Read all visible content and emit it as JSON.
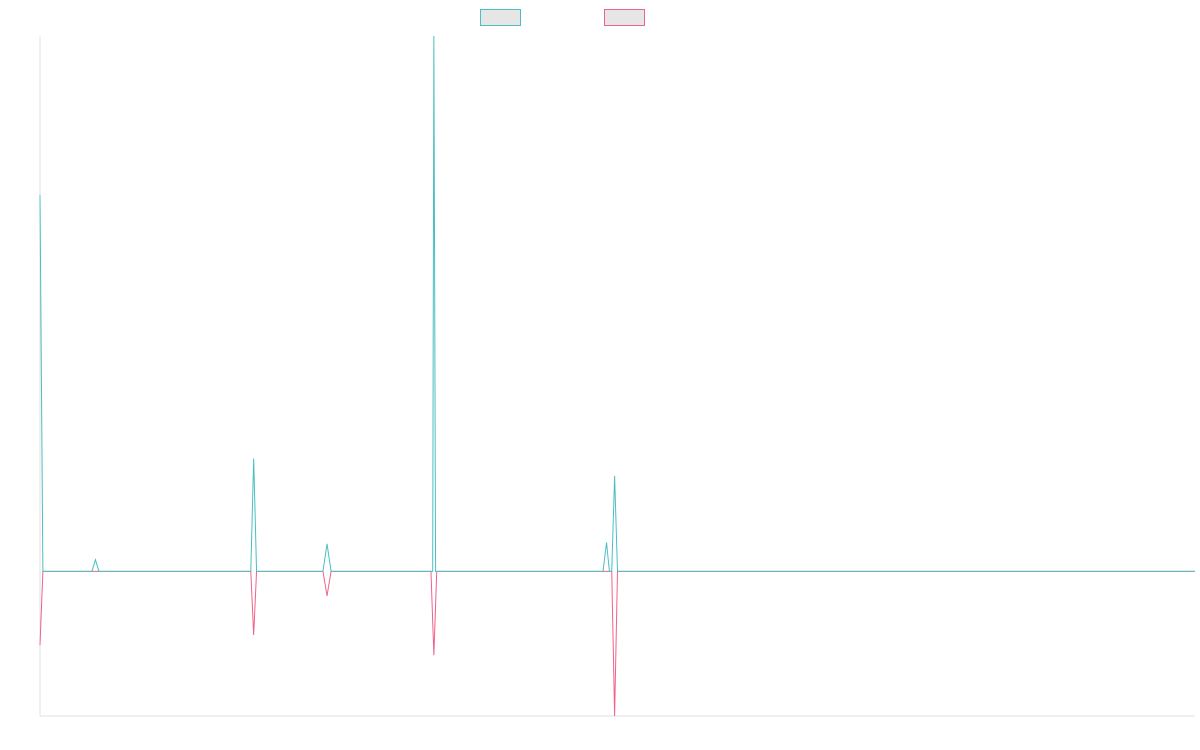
{
  "colors": {
    "positive_series": "#4bbfc0",
    "negative_series": "#f0628a",
    "legend_fill": "#e6e6e6",
    "axis": "#e0e0e0"
  },
  "chart_data": {
    "type": "line",
    "title": "",
    "xlabel": "",
    "ylabel": "",
    "legend": {
      "position": "top-center",
      "entries": [
        "",
        ""
      ]
    },
    "grid": false,
    "xlim": [
      0,
      200
    ],
    "ylim": [
      -100,
      370
    ],
    "series": [
      {
        "color": "#4bbfc0",
        "points": [
          [
            0,
            260
          ],
          [
            0.5,
            0
          ],
          [
            9,
            0
          ],
          [
            9.6,
            8
          ],
          [
            10.2,
            0
          ],
          [
            36.5,
            0
          ],
          [
            37,
            78
          ],
          [
            37.5,
            0
          ],
          [
            49,
            0
          ],
          [
            49.7,
            19
          ],
          [
            50.4,
            0
          ],
          [
            68,
            0
          ],
          [
            68.2,
            370
          ],
          [
            68.5,
            0
          ],
          [
            97.5,
            0
          ],
          [
            98.1,
            20
          ],
          [
            98.6,
            0
          ],
          [
            99,
            0
          ],
          [
            99.5,
            66
          ],
          [
            100,
            0
          ],
          [
            200,
            0
          ]
        ]
      },
      {
        "color": "#f0628a",
        "points": [
          [
            0,
            -51
          ],
          [
            0.5,
            0
          ],
          [
            36.5,
            0
          ],
          [
            37,
            -44
          ],
          [
            37.5,
            0
          ],
          [
            49,
            0
          ],
          [
            49.7,
            -17
          ],
          [
            50.4,
            0
          ],
          [
            67.7,
            0
          ],
          [
            68.2,
            -58
          ],
          [
            68.7,
            0
          ],
          [
            99,
            0
          ],
          [
            99.5,
            -100
          ],
          [
            100,
            0
          ],
          [
            200,
            0
          ]
        ]
      }
    ]
  }
}
